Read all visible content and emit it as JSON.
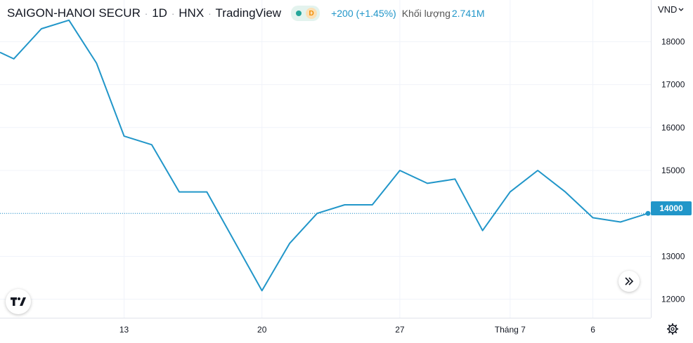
{
  "header": {
    "symbol": "SAIGON-HANOI SECUR",
    "interval": "1D",
    "exchange": "HNX",
    "source": "TradingView",
    "status_badge_letter": "D",
    "status_dot_color": "#26a69a",
    "change": "+200 (+1.45%)",
    "volume_label": "Khối lượng",
    "volume_value": "2.741M"
  },
  "axis": {
    "currency": "VND",
    "last_price_label": "14000"
  },
  "icons": {
    "logo": "tradingview-logo-icon",
    "scroll": "scroll-to-realtime-icon",
    "settings": "gear-icon",
    "currency_dropdown": "chevron-down-icon"
  },
  "colors": {
    "line": "#2196c9",
    "grid": "#f0f3fa",
    "axis_text": "#131722"
  },
  "chart_data": {
    "type": "line",
    "title": "",
    "x_ticks": [
      {
        "label": "13",
        "index": 9
      },
      {
        "label": "20",
        "index": 19
      },
      {
        "label": "27",
        "index": 29
      },
      {
        "label": "Tháng 7",
        "index": 37
      },
      {
        "label": "6",
        "index": 43
      }
    ],
    "y_ticks": [
      12000,
      13000,
      14000,
      15000,
      16000,
      17000,
      18000
    ],
    "ylim": [
      11570,
      18970
    ],
    "xlim": [
      0,
      47
    ],
    "series": [
      {
        "values": [
          {
            "i": 0,
            "v": 17750
          },
          {
            "i": 1,
            "v": 17600
          },
          {
            "i": 3,
            "v": 18300
          },
          {
            "i": 5,
            "v": 18500
          },
          {
            "i": 7,
            "v": 17500
          },
          {
            "i": 9,
            "v": 15800
          },
          {
            "i": 11,
            "v": 15600
          },
          {
            "i": 13,
            "v": 14500
          },
          {
            "i": 15,
            "v": 14500
          },
          {
            "i": 19,
            "v": 12200
          },
          {
            "i": 21,
            "v": 13300
          },
          {
            "i": 23,
            "v": 14000
          },
          {
            "i": 25,
            "v": 14200
          },
          {
            "i": 27,
            "v": 14200
          },
          {
            "i": 29,
            "v": 15000
          },
          {
            "i": 31,
            "v": 14700
          },
          {
            "i": 33,
            "v": 14800
          },
          {
            "i": 35,
            "v": 13600
          },
          {
            "i": 37,
            "v": 14500
          },
          {
            "i": 39,
            "v": 15000
          },
          {
            "i": 41,
            "v": 14500
          },
          {
            "i": 43,
            "v": 13900
          },
          {
            "i": 45,
            "v": 13800
          },
          {
            "i": 47,
            "v": 14000
          }
        ]
      }
    ],
    "last_value": 14000
  }
}
